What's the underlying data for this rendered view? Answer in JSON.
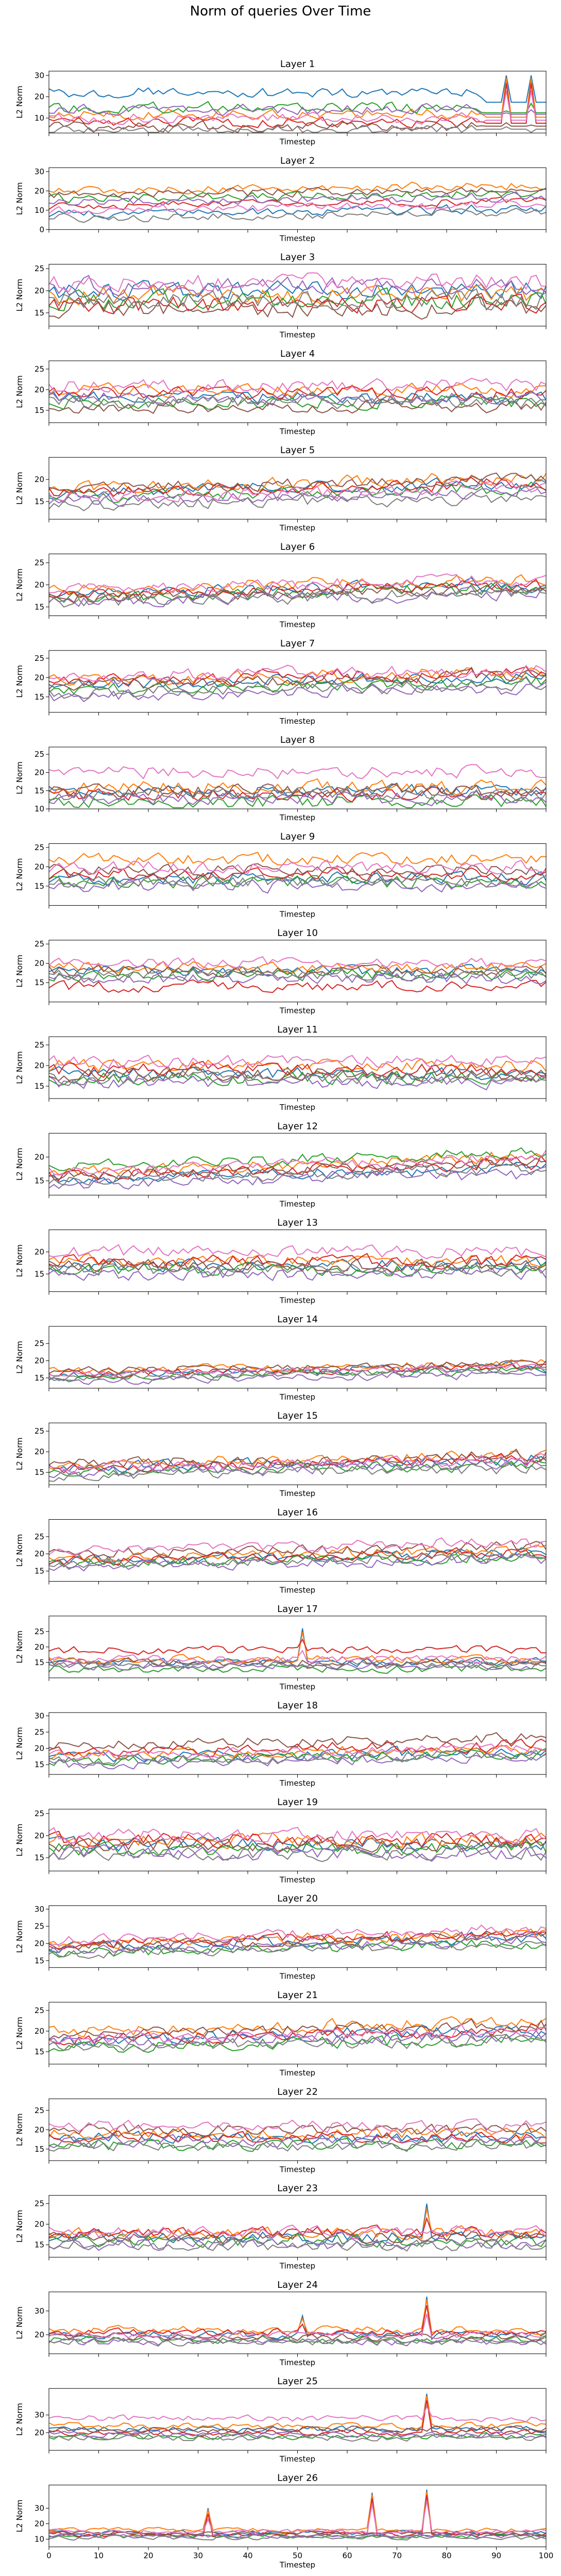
{
  "figure": {
    "title": "Norm of queries Over Time"
  },
  "colors": [
    "#1f77b4",
    "#ff7f0e",
    "#2ca02c",
    "#d62728",
    "#9467bd",
    "#8c564b",
    "#e377c2",
    "#7f7f7f",
    "#bcbd22",
    "#17becf"
  ],
  "chart_data": {
    "type": "line",
    "xlabel": "Timestep",
    "ylabel": "L2 Norm",
    "xlim": [
      0,
      100
    ],
    "x_ticks": [
      0,
      10,
      20,
      30,
      40,
      50,
      60,
      70,
      80,
      90,
      100
    ],
    "grid": false,
    "series_per_panel": 8,
    "panels": [
      {
        "title": "Layer 1",
        "ylim": [
          3,
          32
        ],
        "y_ticks": [
          10,
          20,
          30
        ],
        "base": [
          22,
          12,
          15,
          8,
          14,
          6,
          10,
          4
        ],
        "noise": 3.5,
        "spikes": [
          [
            92,
            30
          ],
          [
            97,
            30
          ]
        ],
        "tail_from": 88
      },
      {
        "title": "Layer 2",
        "ylim": [
          0,
          32
        ],
        "y_ticks": [
          0,
          10,
          20,
          30
        ],
        "base": [
          8,
          20,
          16,
          12,
          14,
          18,
          10,
          6
        ],
        "noise": 3,
        "trend": 4
      },
      {
        "title": "Layer 3",
        "ylim": [
          12,
          26
        ],
        "y_ticks": [
          15,
          20,
          25
        ],
        "base": [
          20,
          19,
          18,
          17,
          21,
          16,
          22,
          18
        ],
        "noise": 2.8
      },
      {
        "title": "Layer 4",
        "ylim": [
          12,
          27
        ],
        "y_ticks": [
          15,
          20,
          25
        ],
        "base": [
          18,
          20,
          17,
          19,
          18,
          16,
          21,
          17
        ],
        "noise": 2.2
      },
      {
        "title": "Layer 5",
        "ylim": [
          11,
          25
        ],
        "y_ticks": [
          15,
          20
        ],
        "base": [
          17,
          18,
          16,
          17,
          15,
          18,
          16,
          14
        ],
        "noise": 1.8,
        "trend": 3
      },
      {
        "title": "Layer 6",
        "ylim": [
          13,
          27
        ],
        "y_ticks": [
          15,
          20,
          25
        ],
        "base": [
          18,
          19,
          17,
          18,
          16,
          17,
          19,
          16
        ],
        "noise": 1.8,
        "trend": 3
      },
      {
        "title": "Layer 7",
        "ylim": [
          11,
          27
        ],
        "y_ticks": [
          15,
          20,
          25
        ],
        "base": [
          18,
          19,
          17,
          19,
          15,
          18,
          20,
          16
        ],
        "noise": 2.2,
        "trend": 3
      },
      {
        "title": "Layer 8",
        "ylim": [
          10,
          27
        ],
        "y_ticks": [
          10,
          15,
          20,
          25
        ],
        "base": [
          15,
          16,
          12,
          14,
          13,
          15,
          20,
          14
        ],
        "noise": 2.5
      },
      {
        "title": "Layer 9",
        "ylim": [
          10,
          26
        ],
        "y_ticks": [
          15,
          20,
          25
        ],
        "base": [
          17,
          22,
          16,
          18,
          15,
          19,
          20,
          16
        ],
        "noise": 2.2
      },
      {
        "title": "Layer 10",
        "ylim": [
          10,
          26
        ],
        "y_ticks": [
          15,
          20,
          25
        ],
        "base": [
          18,
          19,
          17,
          14,
          16,
          18,
          20,
          17
        ],
        "noise": 2.0
      },
      {
        "title": "Layer 11",
        "ylim": [
          12,
          27
        ],
        "y_ticks": [
          15,
          20,
          25
        ],
        "base": [
          18,
          20,
          17,
          19,
          16,
          18,
          21,
          17
        ],
        "noise": 2.2
      },
      {
        "title": "Layer 12",
        "ylim": [
          12,
          25
        ],
        "y_ticks": [
          15,
          20
        ],
        "base": [
          15,
          17,
          18,
          16,
          14,
          16,
          17,
          15
        ],
        "noise": 1.5,
        "trend": 4
      },
      {
        "title": "Layer 13",
        "ylim": [
          11,
          25
        ],
        "y_ticks": [
          15,
          20
        ],
        "base": [
          17,
          18,
          16,
          18,
          15,
          17,
          20,
          16
        ],
        "noise": 2.0
      },
      {
        "title": "Layer 14",
        "ylim": [
          12,
          30
        ],
        "y_ticks": [
          15,
          20,
          25
        ],
        "base": [
          16,
          17,
          15,
          16,
          14,
          17,
          16,
          15
        ],
        "noise": 1.5,
        "trend": 3
      },
      {
        "title": "Layer 15",
        "ylim": [
          12,
          27
        ],
        "y_ticks": [
          15,
          20,
          25
        ],
        "base": [
          16,
          17,
          15,
          16,
          15,
          17,
          16,
          14
        ],
        "noise": 1.8,
        "trend": 3
      },
      {
        "title": "Layer 16",
        "ylim": [
          12,
          30
        ],
        "y_ticks": [
          15,
          20,
          25
        ],
        "base": [
          18,
          19,
          17,
          18,
          16,
          20,
          21,
          17
        ],
        "noise": 2.0,
        "trend": 3
      },
      {
        "title": "Layer 17",
        "ylim": [
          10,
          30
        ],
        "y_ticks": [
          15,
          20,
          25
        ],
        "base": [
          15,
          16,
          13,
          19,
          14,
          15,
          16,
          14
        ],
        "noise": 1.8,
        "spikes": [
          [
            51,
            26
          ]
        ]
      },
      {
        "title": "Layer 18",
        "ylim": [
          12,
          31
        ],
        "y_ticks": [
          15,
          20,
          25,
          30
        ],
        "base": [
          17,
          18,
          16,
          19,
          15,
          21,
          18,
          16
        ],
        "noise": 2.2,
        "trend": 3
      },
      {
        "title": "Layer 19",
        "ylim": [
          12,
          26
        ],
        "y_ticks": [
          15,
          20,
          25
        ],
        "base": [
          18,
          19,
          17,
          19,
          16,
          18,
          20,
          16
        ],
        "noise": 2.2
      },
      {
        "title": "Layer 20",
        "ylim": [
          13,
          31
        ],
        "y_ticks": [
          15,
          20,
          25,
          30
        ],
        "base": [
          19,
          20,
          17,
          20,
          18,
          19,
          21,
          17
        ],
        "noise": 2.0,
        "trend": 4
      },
      {
        "title": "Layer 21",
        "ylim": [
          12,
          27
        ],
        "y_ticks": [
          15,
          20,
          25
        ],
        "base": [
          18,
          20,
          16,
          18,
          17,
          19,
          18,
          16
        ],
        "noise": 2.0,
        "trend": 3
      },
      {
        "title": "Layer 22",
        "ylim": [
          12,
          28
        ],
        "y_ticks": [
          15,
          20,
          25
        ],
        "base": [
          18,
          19,
          16,
          18,
          17,
          20,
          21,
          16
        ],
        "noise": 2.0
      },
      {
        "title": "Layer 23",
        "ylim": [
          12,
          27
        ],
        "y_ticks": [
          15,
          20,
          25
        ],
        "base": [
          17,
          18,
          16,
          18,
          15,
          17,
          18,
          15
        ],
        "noise": 2.0,
        "spikes": [
          [
            76,
            25
          ]
        ]
      },
      {
        "title": "Layer 24",
        "ylim": [
          12,
          38
        ],
        "y_ticks": [
          20,
          30
        ],
        "base": [
          20,
          22,
          18,
          21,
          17,
          19,
          20,
          17
        ],
        "noise": 2.2,
        "spikes": [
          [
            51,
            28
          ],
          [
            76,
            36
          ]
        ]
      },
      {
        "title": "Layer 25",
        "ylim": [
          10,
          45
        ],
        "y_ticks": [
          20,
          30
        ],
        "base": [
          22,
          24,
          18,
          20,
          19,
          22,
          28,
          17
        ],
        "noise": 2.5,
        "spikes": [
          [
            76,
            42
          ]
        ]
      },
      {
        "title": "Layer 26",
        "ylim": [
          5,
          45
        ],
        "y_ticks": [
          10,
          20,
          30
        ],
        "base": [
          14,
          16,
          12,
          13,
          12,
          14,
          15,
          11
        ],
        "noise": 2.0,
        "spikes": [
          [
            32,
            30
          ],
          [
            65,
            40
          ],
          [
            76,
            42
          ]
        ]
      }
    ]
  }
}
